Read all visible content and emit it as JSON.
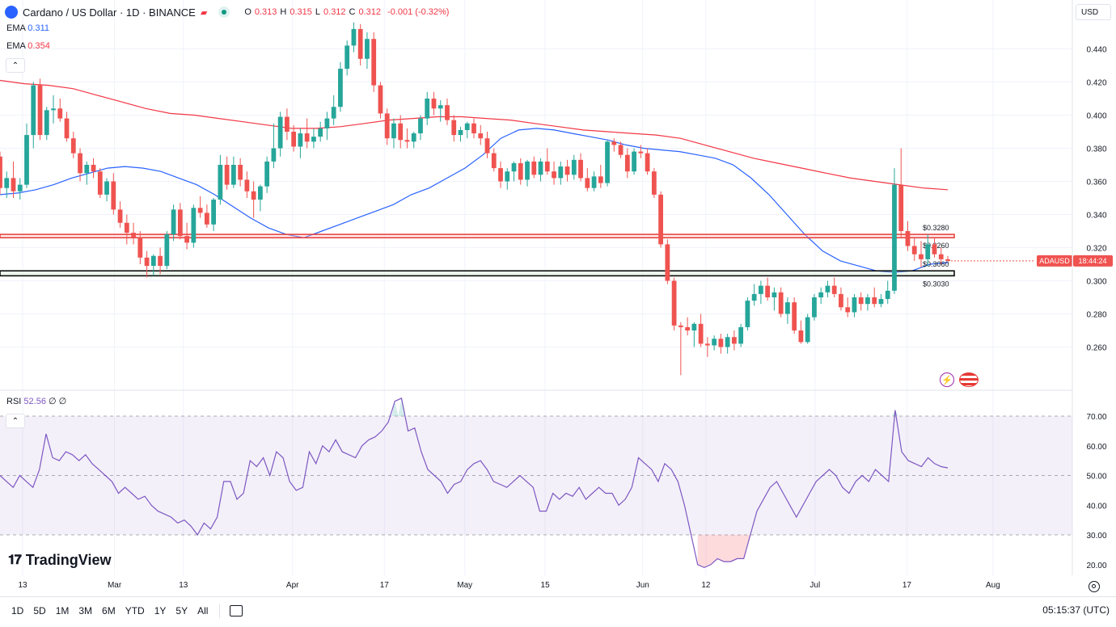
{
  "header": {
    "title": "Cardano / US Dollar · 1D · BINANCE",
    "ohlc": [
      {
        "k": "O",
        "v": "0.313"
      },
      {
        "k": "H",
        "v": "0.315"
      },
      {
        "k": "L",
        "v": "0.312"
      },
      {
        "k": "C",
        "v": "0.312"
      },
      {
        "k": "",
        "v": "-0.001 (-0.32%)"
      }
    ]
  },
  "indicators": {
    "ema_fast": {
      "label": "EMA",
      "value": "0.311",
      "color": "#2962ff"
    },
    "ema_slow": {
      "label": "EMA",
      "value": "0.354",
      "color": "#f23645"
    },
    "rsi": {
      "label": "RSI",
      "value": "52.56",
      "extra": "∅ ∅"
    }
  },
  "currency": "USD",
  "brand": "TradingView",
  "price_tag": {
    "symbol": "ADAUSD",
    "time": "18:44:24"
  },
  "levels": [
    {
      "label": "$0.3280",
      "value": 0.328,
      "color": "#e53935"
    },
    {
      "label": "$0.3260",
      "value": 0.326,
      "color": "#e53935"
    },
    {
      "label": "$0.3060",
      "value": 0.306,
      "color": "#000000"
    },
    {
      "label": "$0.3030",
      "value": 0.303,
      "color": "#000000"
    }
  ],
  "ranges": [
    "1D",
    "5D",
    "1M",
    "3M",
    "6M",
    "YTD",
    "1Y",
    "5Y",
    "All"
  ],
  "clock": "05:15:37 (UTC)",
  "chart_data": {
    "type": "candlestick",
    "title": "Cardano / US Dollar · 1D · BINANCE",
    "y_ticks": [
      "0.440",
      "0.420",
      "0.400",
      "0.380",
      "0.360",
      "0.340",
      "0.320",
      "0.300",
      "0.280",
      "0.260"
    ],
    "ylim": [
      0.245,
      0.455
    ],
    "x_ticks": [
      {
        "label": "13",
        "x": 0
      },
      {
        "label": "Mar",
        "x": 16
      },
      {
        "label": "13",
        "x": 28
      },
      {
        "label": "Apr",
        "x": 47
      },
      {
        "label": "17",
        "x": 63
      },
      {
        "label": "May",
        "x": 77
      },
      {
        "label": "15",
        "x": 91
      },
      {
        "label": "Jun",
        "x": 108
      },
      {
        "label": "12",
        "x": 119
      },
      {
        "label": "Jul",
        "x": 138
      },
      {
        "label": "17",
        "x": 154
      },
      {
        "label": "Aug",
        "x": 169
      }
    ],
    "candles": [
      [
        0.375,
        0.378,
        0.352,
        0.356
      ],
      [
        0.356,
        0.366,
        0.35,
        0.362
      ],
      [
        0.362,
        0.372,
        0.35,
        0.354
      ],
      [
        0.354,
        0.362,
        0.349,
        0.358
      ],
      [
        0.358,
        0.395,
        0.356,
        0.388
      ],
      [
        0.388,
        0.42,
        0.38,
        0.418
      ],
      [
        0.418,
        0.422,
        0.385,
        0.388
      ],
      [
        0.388,
        0.405,
        0.385,
        0.403
      ],
      [
        0.403,
        0.412,
        0.395,
        0.404
      ],
      [
        0.404,
        0.41,
        0.396,
        0.398
      ],
      [
        0.398,
        0.402,
        0.384,
        0.386
      ],
      [
        0.386,
        0.39,
        0.374,
        0.377
      ],
      [
        0.377,
        0.38,
        0.36,
        0.365
      ],
      [
        0.365,
        0.372,
        0.358,
        0.37
      ],
      [
        0.37,
        0.374,
        0.362,
        0.366
      ],
      [
        0.366,
        0.368,
        0.35,
        0.352
      ],
      [
        0.352,
        0.362,
        0.348,
        0.36
      ],
      [
        0.36,
        0.365,
        0.34,
        0.343
      ],
      [
        0.343,
        0.348,
        0.332,
        0.335
      ],
      [
        0.335,
        0.34,
        0.322,
        0.329
      ],
      [
        0.329,
        0.335,
        0.322,
        0.326
      ],
      [
        0.326,
        0.33,
        0.31,
        0.314
      ],
      [
        0.314,
        0.318,
        0.302,
        0.309
      ],
      [
        0.309,
        0.316,
        0.303,
        0.315
      ],
      [
        0.315,
        0.32,
        0.304,
        0.309
      ],
      [
        0.309,
        0.33,
        0.307,
        0.328
      ],
      [
        0.328,
        0.346,
        0.324,
        0.343
      ],
      [
        0.343,
        0.347,
        0.325,
        0.327
      ],
      [
        0.327,
        0.335,
        0.319,
        0.323
      ],
      [
        0.323,
        0.346,
        0.32,
        0.344
      ],
      [
        0.344,
        0.351,
        0.338,
        0.341
      ],
      [
        0.341,
        0.346,
        0.332,
        0.334
      ],
      [
        0.334,
        0.35,
        0.33,
        0.349
      ],
      [
        0.349,
        0.376,
        0.346,
        0.37
      ],
      [
        0.37,
        0.375,
        0.355,
        0.358
      ],
      [
        0.358,
        0.375,
        0.356,
        0.37
      ],
      [
        0.37,
        0.374,
        0.357,
        0.361
      ],
      [
        0.361,
        0.366,
        0.35,
        0.354
      ],
      [
        0.354,
        0.36,
        0.338,
        0.349
      ],
      [
        0.349,
        0.358,
        0.342,
        0.357
      ],
      [
        0.357,
        0.375,
        0.353,
        0.372
      ],
      [
        0.372,
        0.395,
        0.368,
        0.38
      ],
      [
        0.38,
        0.402,
        0.375,
        0.399
      ],
      [
        0.399,
        0.404,
        0.385,
        0.39
      ],
      [
        0.39,
        0.394,
        0.378,
        0.381
      ],
      [
        0.381,
        0.392,
        0.374,
        0.389
      ],
      [
        0.389,
        0.398,
        0.38,
        0.384
      ],
      [
        0.384,
        0.392,
        0.38,
        0.387
      ],
      [
        0.387,
        0.396,
        0.384,
        0.392
      ],
      [
        0.392,
        0.402,
        0.385,
        0.398
      ],
      [
        0.398,
        0.412,
        0.394,
        0.405
      ],
      [
        0.405,
        0.432,
        0.402,
        0.428
      ],
      [
        0.428,
        0.445,
        0.424,
        0.442
      ],
      [
        0.442,
        0.456,
        0.438,
        0.452
      ],
      [
        0.452,
        0.455,
        0.43,
        0.434
      ],
      [
        0.434,
        0.45,
        0.428,
        0.446
      ],
      [
        0.446,
        0.45,
        0.414,
        0.418
      ],
      [
        0.418,
        0.42,
        0.398,
        0.401
      ],
      [
        0.401,
        0.404,
        0.382,
        0.386
      ],
      [
        0.386,
        0.398,
        0.38,
        0.395
      ],
      [
        0.395,
        0.4,
        0.38,
        0.385
      ],
      [
        0.385,
        0.392,
        0.38,
        0.384
      ],
      [
        0.384,
        0.39,
        0.38,
        0.389
      ],
      [
        0.389,
        0.4,
        0.385,
        0.398
      ],
      [
        0.398,
        0.414,
        0.394,
        0.41
      ],
      [
        0.41,
        0.414,
        0.4,
        0.404
      ],
      [
        0.404,
        0.409,
        0.396,
        0.406
      ],
      [
        0.406,
        0.41,
        0.394,
        0.397
      ],
      [
        0.397,
        0.4,
        0.384,
        0.388
      ],
      [
        0.388,
        0.393,
        0.384,
        0.391
      ],
      [
        0.391,
        0.396,
        0.386,
        0.395
      ],
      [
        0.395,
        0.398,
        0.386,
        0.389
      ],
      [
        0.389,
        0.394,
        0.382,
        0.386
      ],
      [
        0.386,
        0.39,
        0.374,
        0.377
      ],
      [
        0.377,
        0.38,
        0.366,
        0.368
      ],
      [
        0.368,
        0.372,
        0.356,
        0.36
      ],
      [
        0.36,
        0.368,
        0.355,
        0.366
      ],
      [
        0.366,
        0.372,
        0.36,
        0.371
      ],
      [
        0.371,
        0.374,
        0.358,
        0.361
      ],
      [
        0.361,
        0.373,
        0.357,
        0.372
      ],
      [
        0.372,
        0.375,
        0.362,
        0.364
      ],
      [
        0.364,
        0.374,
        0.36,
        0.372
      ],
      [
        0.372,
        0.38,
        0.364,
        0.366
      ],
      [
        0.366,
        0.372,
        0.358,
        0.362
      ],
      [
        0.362,
        0.372,
        0.358,
        0.369
      ],
      [
        0.369,
        0.373,
        0.36,
        0.364
      ],
      [
        0.364,
        0.376,
        0.361,
        0.373
      ],
      [
        0.373,
        0.377,
        0.36,
        0.362
      ],
      [
        0.362,
        0.368,
        0.354,
        0.356
      ],
      [
        0.356,
        0.366,
        0.354,
        0.363
      ],
      [
        0.363,
        0.37,
        0.356,
        0.359
      ],
      [
        0.359,
        0.385,
        0.357,
        0.384
      ],
      [
        0.384,
        0.386,
        0.378,
        0.382
      ],
      [
        0.382,
        0.384,
        0.374,
        0.376
      ],
      [
        0.376,
        0.38,
        0.362,
        0.366
      ],
      [
        0.366,
        0.38,
        0.364,
        0.378
      ],
      [
        0.378,
        0.382,
        0.374,
        0.377
      ],
      [
        0.377,
        0.38,
        0.364,
        0.366
      ],
      [
        0.366,
        0.368,
        0.35,
        0.352
      ],
      [
        0.352,
        0.354,
        0.32,
        0.322
      ],
      [
        0.322,
        0.325,
        0.298,
        0.3
      ],
      [
        0.3,
        0.302,
        0.27,
        0.273
      ],
      [
        0.273,
        0.275,
        0.243,
        0.272
      ],
      [
        0.272,
        0.278,
        0.267,
        0.27
      ],
      [
        0.27,
        0.275,
        0.26,
        0.274
      ],
      [
        0.274,
        0.28,
        0.26,
        0.262
      ],
      [
        0.262,
        0.266,
        0.254,
        0.261
      ],
      [
        0.261,
        0.267,
        0.258,
        0.265
      ],
      [
        0.265,
        0.268,
        0.256,
        0.26
      ],
      [
        0.26,
        0.268,
        0.256,
        0.266
      ],
      [
        0.266,
        0.27,
        0.258,
        0.262
      ],
      [
        0.262,
        0.274,
        0.26,
        0.272
      ],
      [
        0.272,
        0.29,
        0.27,
        0.288
      ],
      [
        0.288,
        0.298,
        0.285,
        0.292
      ],
      [
        0.292,
        0.3,
        0.286,
        0.297
      ],
      [
        0.297,
        0.302,
        0.288,
        0.29
      ],
      [
        0.29,
        0.296,
        0.282,
        0.293
      ],
      [
        0.293,
        0.296,
        0.278,
        0.28
      ],
      [
        0.28,
        0.29,
        0.274,
        0.287
      ],
      [
        0.287,
        0.29,
        0.268,
        0.27
      ],
      [
        0.27,
        0.276,
        0.262,
        0.263
      ],
      [
        0.263,
        0.28,
        0.262,
        0.278
      ],
      [
        0.278,
        0.292,
        0.276,
        0.29
      ],
      [
        0.29,
        0.296,
        0.286,
        0.293
      ],
      [
        0.293,
        0.3,
        0.29,
        0.297
      ],
      [
        0.297,
        0.302,
        0.29,
        0.292
      ],
      [
        0.292,
        0.296,
        0.282,
        0.284
      ],
      [
        0.284,
        0.29,
        0.278,
        0.281
      ],
      [
        0.281,
        0.292,
        0.278,
        0.29
      ],
      [
        0.29,
        0.293,
        0.282,
        0.286
      ],
      [
        0.286,
        0.292,
        0.282,
        0.29
      ],
      [
        0.29,
        0.296,
        0.284,
        0.286
      ],
      [
        0.286,
        0.292,
        0.284,
        0.289
      ],
      [
        0.289,
        0.3,
        0.286,
        0.294
      ],
      [
        0.294,
        0.368,
        0.292,
        0.358
      ],
      [
        0.358,
        0.38,
        0.326,
        0.33
      ],
      [
        0.33,
        0.336,
        0.318,
        0.321
      ],
      [
        0.321,
        0.326,
        0.312,
        0.316
      ],
      [
        0.316,
        0.324,
        0.308,
        0.313
      ],
      [
        0.313,
        0.328,
        0.309,
        0.322
      ],
      [
        0.322,
        0.326,
        0.314,
        0.316
      ],
      [
        0.316,
        0.32,
        0.31,
        0.313
      ],
      [
        0.313,
        0.315,
        0.312,
        0.312
      ]
    ],
    "ema_fast_values": [
      0.352,
      0.353,
      0.355,
      0.358,
      0.362,
      0.365,
      0.368,
      0.369,
      0.368,
      0.366,
      0.362,
      0.358,
      0.352,
      0.345,
      0.338,
      0.332,
      0.328,
      0.326,
      0.33,
      0.334,
      0.338,
      0.342,
      0.346,
      0.352,
      0.356,
      0.362,
      0.368,
      0.376,
      0.386,
      0.391,
      0.392,
      0.391,
      0.389,
      0.387,
      0.385,
      0.382,
      0.38,
      0.379,
      0.378,
      0.376,
      0.374,
      0.37,
      0.362,
      0.352,
      0.34,
      0.328,
      0.318,
      0.312,
      0.309,
      0.306,
      0.305,
      0.306,
      0.31,
      0.311
    ],
    "ema_slow_values": [
      0.421,
      0.419,
      0.418,
      0.416,
      0.412,
      0.408,
      0.404,
      0.401,
      0.4,
      0.398,
      0.396,
      0.394,
      0.392,
      0.392,
      0.393,
      0.395,
      0.397,
      0.398,
      0.399,
      0.399,
      0.398,
      0.397,
      0.395,
      0.393,
      0.391,
      0.39,
      0.389,
      0.388,
      0.386,
      0.382,
      0.378,
      0.374,
      0.371,
      0.368,
      0.365,
      0.362,
      0.36,
      0.358,
      0.356,
      0.355
    ],
    "rsi": {
      "ylim": [
        15,
        80
      ],
      "y_ticks": [
        "70.00",
        "60.00",
        "50.00",
        "40.00",
        "30.00",
        "20.00"
      ],
      "overbought": 70,
      "oversold": 30,
      "values": [
        50,
        48,
        46,
        50,
        48,
        46,
        52,
        64,
        56,
        55,
        58,
        57,
        55,
        57,
        54,
        52,
        50,
        48,
        44,
        46,
        44,
        42,
        43,
        40,
        38,
        37,
        36,
        34,
        35,
        33,
        30,
        34,
        32,
        36,
        48,
        48,
        42,
        44,
        55,
        53,
        56,
        50,
        58,
        56,
        48,
        45,
        46,
        58,
        54,
        60,
        58,
        62,
        58,
        57,
        56,
        60,
        62,
        63,
        65,
        68,
        75,
        76,
        65,
        66,
        58,
        52,
        50,
        48,
        44,
        47,
        48,
        52,
        54,
        55,
        52,
        48,
        47,
        46,
        48,
        50,
        48,
        46,
        38,
        38,
        44,
        42,
        44,
        43,
        46,
        42,
        44,
        46,
        44,
        44,
        40,
        42,
        46,
        56,
        54,
        52,
        48,
        54,
        52,
        48,
        40,
        30,
        20,
        19,
        20,
        22,
        21,
        21,
        22,
        22,
        30,
        38,
        42,
        46,
        48,
        44,
        40,
        36,
        40,
        44,
        48,
        50,
        52,
        50,
        46,
        44,
        48,
        50,
        48,
        52,
        50,
        48,
        72,
        58,
        55,
        54,
        53,
        56,
        54,
        53,
        52.56
      ]
    }
  }
}
